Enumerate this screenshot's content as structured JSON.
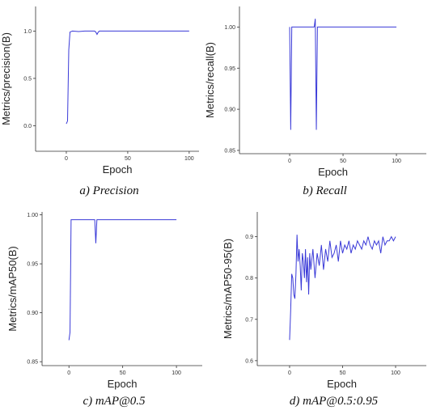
{
  "chart_data": [
    {
      "type": "line",
      "caption": "a)  Precision",
      "xlabel": "Epoch",
      "ylabel": "Metrics/precision(B)",
      "color": "#3a3ad8",
      "xlim": [
        -25,
        108
      ],
      "ylim": [
        -0.27,
        1.26
      ],
      "xticks": [
        0,
        50,
        100
      ],
      "yticks": [
        {
          "value": 0,
          "label": "0.0"
        },
        {
          "value": 0.5,
          "label": "0.5"
        },
        {
          "value": 1,
          "label": "1.0"
        }
      ],
      "x": [
        0,
        1,
        2,
        3,
        5,
        10,
        15,
        20,
        23,
        24,
        25,
        26,
        27,
        30,
        40,
        50,
        60,
        70,
        80,
        90,
        100
      ],
      "values": [
        0.02,
        0.05,
        0.8,
        0.99,
        1.0,
        0.995,
        1.0,
        1.0,
        1.0,
        0.99,
        0.965,
        0.99,
        1.0,
        1.0,
        1.0,
        1.0,
        1.0,
        1.0,
        1.0,
        1.0,
        1.0
      ]
    },
    {
      "type": "line",
      "caption": "b)  Recall",
      "xlabel": "Epoch",
      "ylabel": "Metrics/recall(B)",
      "color": "#3a3ad8",
      "xlim": [
        -47,
        128
      ],
      "ylim": [
        0.846,
        1.025
      ],
      "xticks": [
        0,
        50,
        100
      ],
      "yticks": [
        0.85,
        {
          "value": 0.9,
          "label": "0.90"
        },
        0.95,
        {
          "value": 1,
          "label": "1.00"
        }
      ],
      "x": [
        0,
        1,
        2,
        3,
        10,
        20,
        23,
        24,
        25,
        26,
        27,
        40,
        60,
        80,
        100
      ],
      "values": [
        1.0,
        0.875,
        1.0,
        1.0,
        1.0,
        1.0,
        1.0,
        1.01,
        0.875,
        1.0,
        1.0,
        1.0,
        1.0,
        1.0,
        1.0
      ]
    },
    {
      "type": "line",
      "caption": "c)  mAP@0.5",
      "xlabel": "Epoch",
      "ylabel": "Metrics/mAP50(B)",
      "color": "#3a3ad8",
      "xlim": [
        -25,
        124
      ],
      "ylim": [
        0.846,
        1.003
      ],
      "xticks": [
        0,
        50,
        100
      ],
      "yticks": [
        0.85,
        {
          "value": 0.9,
          "label": "0.90"
        },
        0.95,
        {
          "value": 1,
          "label": "1.00"
        }
      ],
      "x": [
        0,
        1,
        2,
        3,
        10,
        20,
        24,
        25,
        26,
        27,
        40,
        60,
        80,
        100
      ],
      "values": [
        0.872,
        0.88,
        0.995,
        0.995,
        0.995,
        0.995,
        0.995,
        0.971,
        0.995,
        0.995,
        0.995,
        0.995,
        0.995,
        0.995
      ]
    },
    {
      "type": "line",
      "caption": "d)  mAP@0.5:0.95",
      "xlabel": "Epoch",
      "ylabel": "Metrics/mAP50-95(B)",
      "color": "#3a3ad8",
      "xlim": [
        -30.5,
        129
      ],
      "ylim": [
        0.588,
        0.96
      ],
      "xticks": [
        0,
        50,
        100
      ],
      "yticks": [
        0.6,
        0.7,
        0.8,
        0.9
      ],
      "x": [
        0,
        1,
        2,
        3,
        4,
        5,
        6,
        7,
        8,
        9,
        10,
        11,
        12,
        13,
        14,
        15,
        16,
        17,
        18,
        19,
        20,
        22,
        24,
        26,
        28,
        30,
        32,
        34,
        36,
        38,
        40,
        42,
        44,
        46,
        48,
        50,
        52,
        54,
        56,
        58,
        60,
        62,
        64,
        66,
        68,
        70,
        72,
        74,
        76,
        78,
        80,
        82,
        84,
        86,
        88,
        90,
        92,
        94,
        96,
        98,
        100
      ],
      "values": [
        0.65,
        0.72,
        0.81,
        0.8,
        0.76,
        0.75,
        0.81,
        0.905,
        0.84,
        0.87,
        0.83,
        0.77,
        0.86,
        0.84,
        0.8,
        0.87,
        0.79,
        0.85,
        0.76,
        0.86,
        0.82,
        0.87,
        0.8,
        0.86,
        0.83,
        0.88,
        0.82,
        0.87,
        0.84,
        0.89,
        0.85,
        0.86,
        0.88,
        0.84,
        0.89,
        0.86,
        0.88,
        0.87,
        0.89,
        0.86,
        0.88,
        0.87,
        0.89,
        0.88,
        0.87,
        0.89,
        0.88,
        0.9,
        0.88,
        0.87,
        0.89,
        0.88,
        0.89,
        0.86,
        0.9,
        0.88,
        0.89,
        0.89,
        0.9,
        0.89,
        0.9
      ]
    }
  ]
}
